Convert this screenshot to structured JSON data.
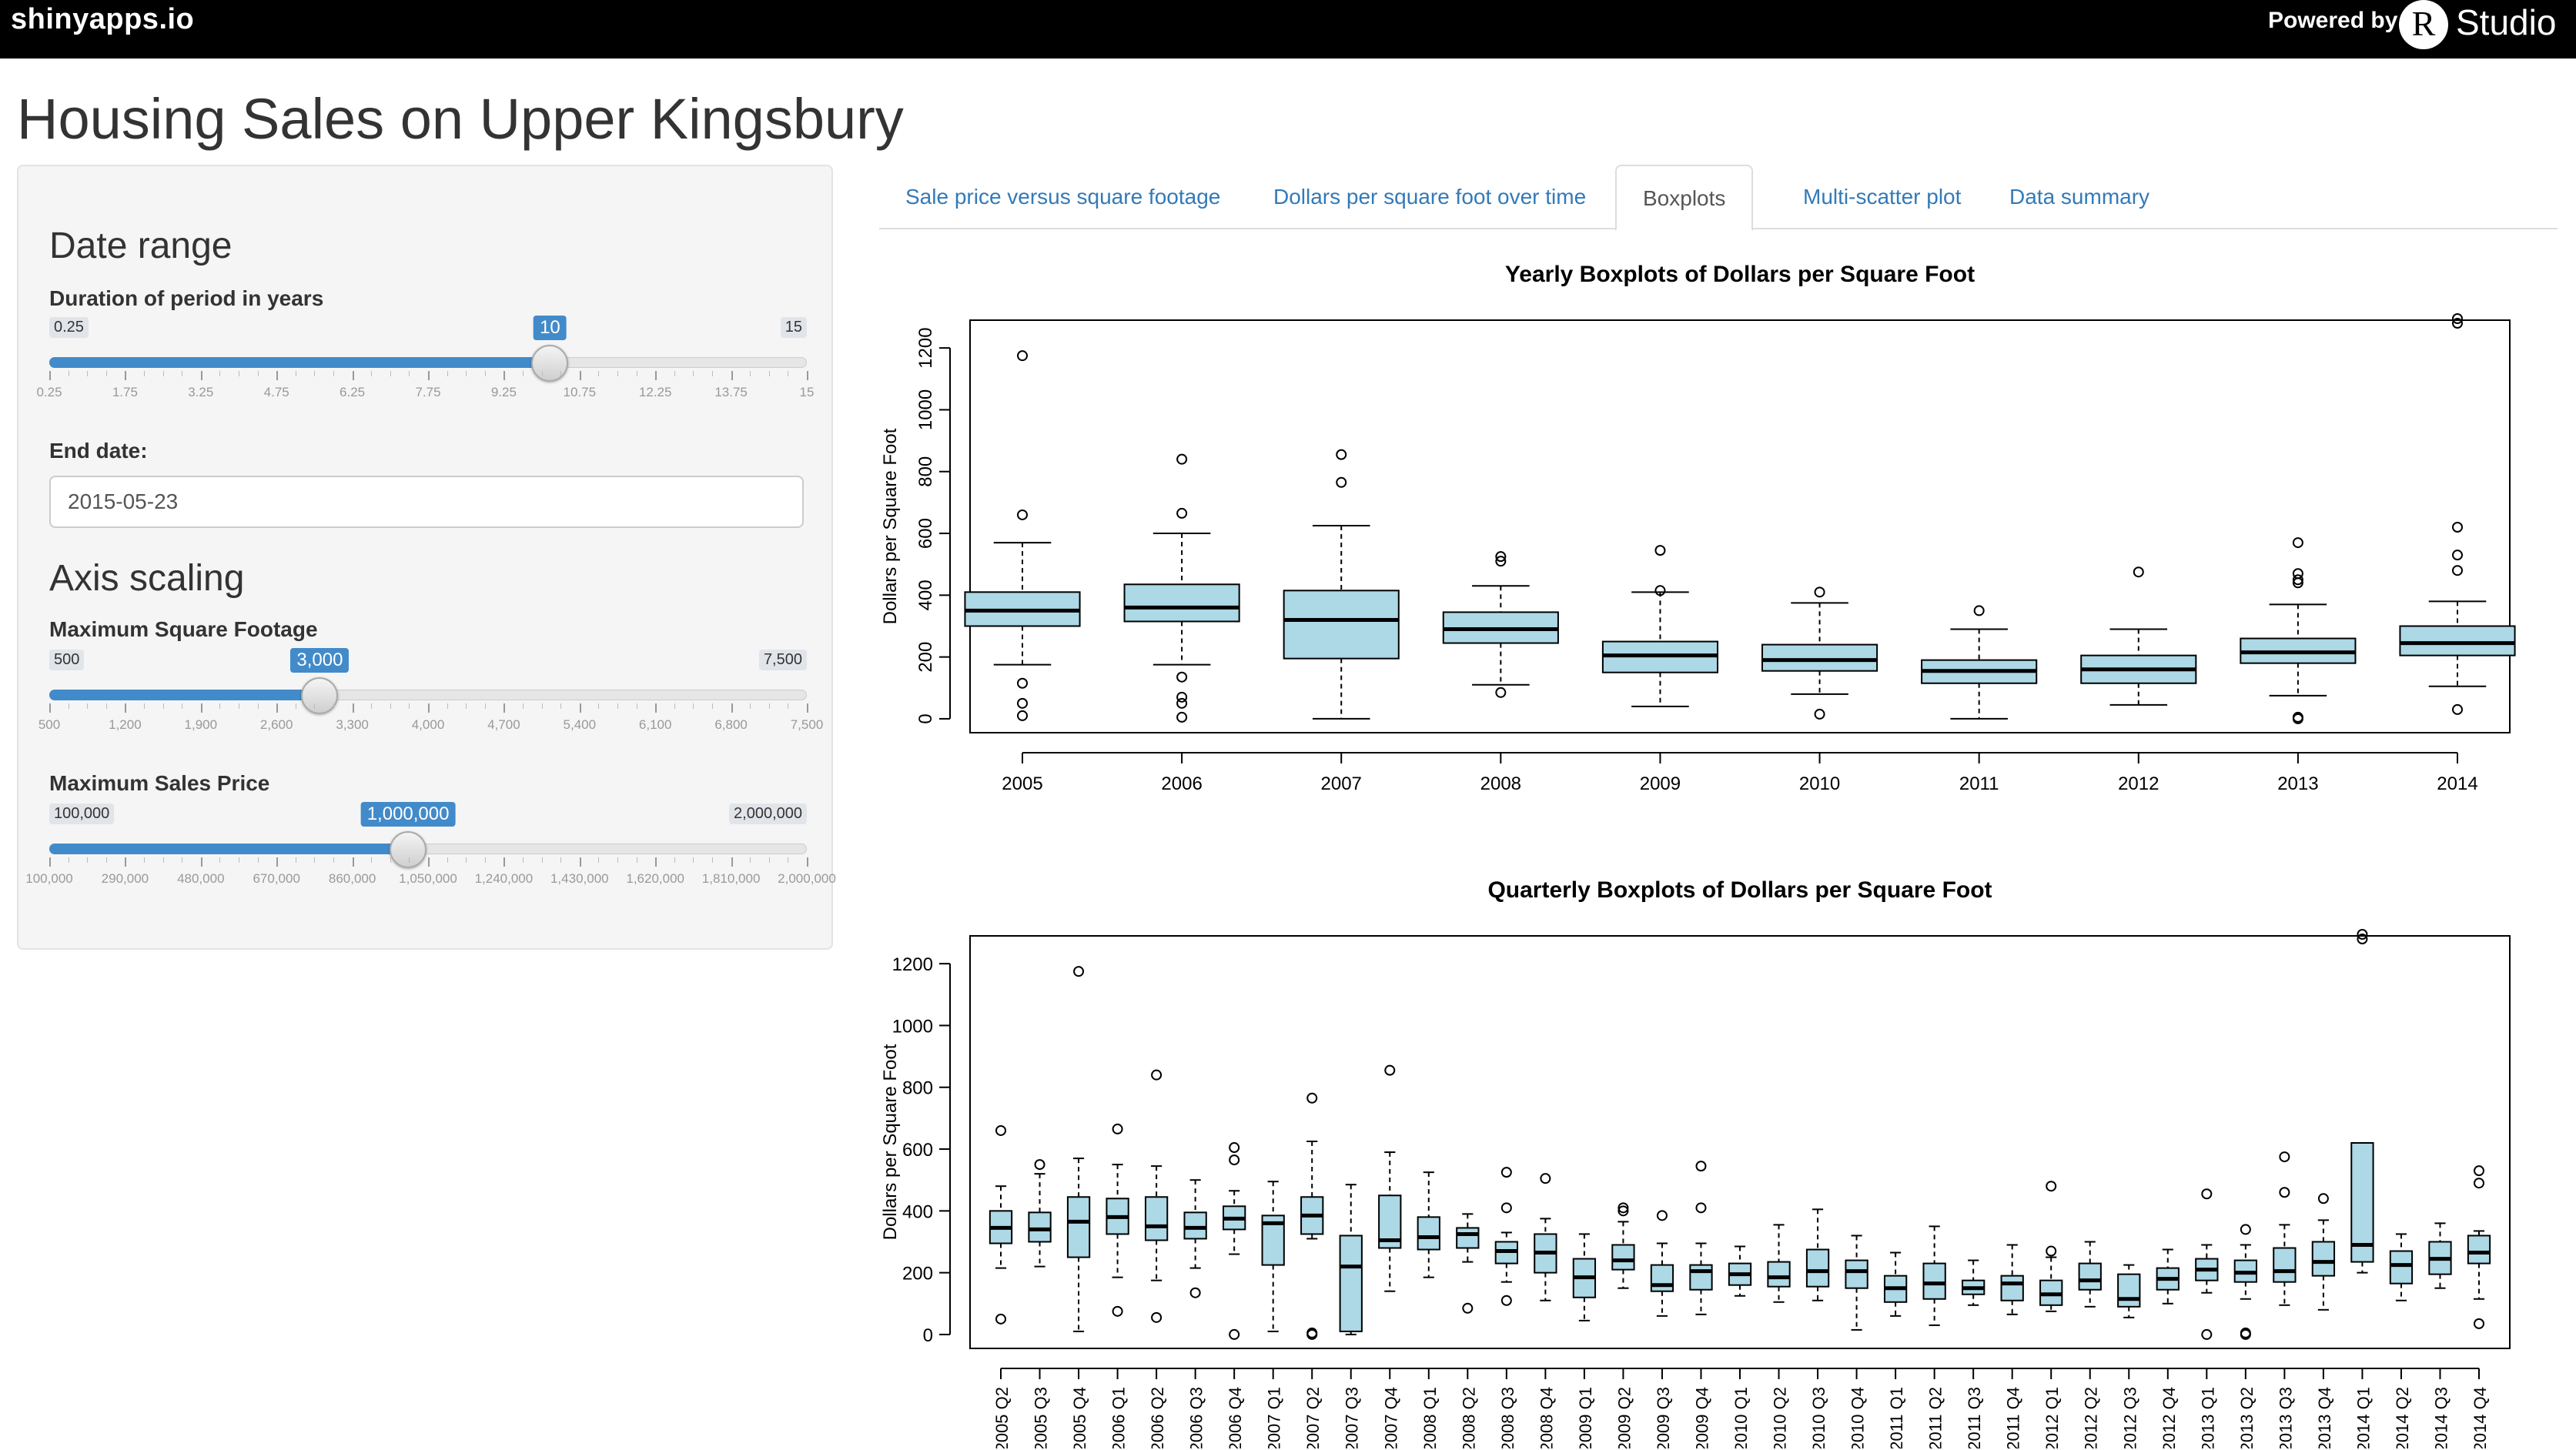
{
  "topbar": {
    "brand": "shinyapps.io",
    "powered_by": "Powered by",
    "rstudio_r": "R",
    "rstudio_word": "Studio"
  },
  "title": "Housing Sales on Upper Kingsbury",
  "sidebar": {
    "date_range_heading": "Date range",
    "duration": {
      "label": "Duration of period in years",
      "min": 0.25,
      "max": 15,
      "value": 10,
      "min_label": "0.25",
      "max_label": "15",
      "value_label": "10",
      "tick_labels": [
        "0.25",
        "1.75",
        "3.25",
        "4.75",
        "6.25",
        "7.75",
        "9.25",
        "10.75",
        "12.25",
        "13.75",
        "15"
      ]
    },
    "end_date": {
      "label": "End date:",
      "value": "2015-05-23"
    },
    "axis_heading": "Axis scaling",
    "max_sqft": {
      "label": "Maximum Square Footage",
      "min": 500,
      "max": 7500,
      "value": 3000,
      "min_label": "500",
      "max_label": "7,500",
      "value_label": "3,000",
      "tick_labels": [
        "500",
        "1,200",
        "1,900",
        "2,600",
        "3,300",
        "4,000",
        "4,700",
        "5,400",
        "6,100",
        "6,800",
        "7,500"
      ]
    },
    "max_price": {
      "label": "Maximum Sales Price",
      "min": 100000,
      "max": 2000000,
      "value": 1000000,
      "min_label": "100,000",
      "max_label": "2,000,000",
      "value_label": "1,000,000",
      "tick_labels": [
        "100,000",
        "290,000",
        "480,000",
        "670,000",
        "860,000",
        "1,050,000",
        "1,240,000",
        "1,430,000",
        "1,620,000",
        "1,810,000",
        "2,000,000"
      ]
    }
  },
  "tabs": [
    {
      "label": "Sale price versus square footage",
      "active": false
    },
    {
      "label": "Dollars per square foot over time",
      "active": false
    },
    {
      "label": "Boxplots",
      "active": true
    },
    {
      "label": "Multi-scatter plot",
      "active": false
    },
    {
      "label": "Data summary",
      "active": false
    }
  ],
  "colors": {
    "box_fill": "#add8e6",
    "accent": "#428bca",
    "link": "#337ab7"
  },
  "chart_data": [
    {
      "type": "boxplot",
      "title": "Yearly Boxplots of Dollars per Square Foot",
      "ylabel": "Dollars per Square Foot",
      "ylim": [
        -45,
        1290
      ],
      "yticks": [
        0,
        200,
        400,
        600,
        800,
        1000,
        1200
      ],
      "categories": [
        "2005",
        "2006",
        "2007",
        "2008",
        "2009",
        "2010",
        "2011",
        "2012",
        "2013",
        "2014"
      ],
      "boxes": [
        {
          "low": 175,
          "q1": 300,
          "median": 350,
          "q3": 410,
          "high": 570,
          "outliers": [
            1175,
            660,
            115,
            50,
            10
          ]
        },
        {
          "low": 175,
          "q1": 315,
          "median": 360,
          "q3": 435,
          "high": 600,
          "outliers": [
            840,
            665,
            135,
            70,
            50,
            5
          ]
        },
        {
          "low": 0,
          "q1": 195,
          "median": 320,
          "q3": 415,
          "high": 625,
          "outliers": [
            855,
            765
          ]
        },
        {
          "low": 110,
          "q1": 245,
          "median": 290,
          "q3": 345,
          "high": 430,
          "outliers": [
            525,
            510,
            85
          ]
        },
        {
          "low": 40,
          "q1": 150,
          "median": 205,
          "q3": 250,
          "high": 410,
          "outliers": [
            545,
            415
          ]
        },
        {
          "low": 80,
          "q1": 155,
          "median": 190,
          "q3": 240,
          "high": 375,
          "outliers": [
            410,
            15
          ]
        },
        {
          "low": 0,
          "q1": 115,
          "median": 155,
          "q3": 190,
          "high": 290,
          "outliers": [
            350
          ]
        },
        {
          "low": 45,
          "q1": 115,
          "median": 160,
          "q3": 205,
          "high": 290,
          "outliers": [
            475
          ]
        },
        {
          "low": 75,
          "q1": 180,
          "median": 215,
          "q3": 260,
          "high": 370,
          "outliers": [
            570,
            470,
            450,
            440,
            5,
            0
          ]
        },
        {
          "low": 105,
          "q1": 205,
          "median": 245,
          "q3": 300,
          "high": 380,
          "outliers": [
            1295,
            1280,
            620,
            530,
            480,
            30
          ]
        }
      ]
    },
    {
      "type": "boxplot",
      "title": "Quarterly Boxplots of Dollars per Square Foot",
      "ylabel": "Dollars per Square Foot",
      "ylim": [
        -45,
        1290
      ],
      "yticks": [
        0,
        200,
        400,
        600,
        800,
        1000,
        1200
      ],
      "categories": [
        "2005 Q2",
        "2005 Q3",
        "2005 Q4",
        "2006 Q1",
        "2006 Q2",
        "2006 Q3",
        "2006 Q4",
        "2007 Q1",
        "2007 Q2",
        "2007 Q3",
        "2007 Q4",
        "2008 Q1",
        "2008 Q2",
        "2008 Q3",
        "2008 Q4",
        "2009 Q1",
        "2009 Q2",
        "2009 Q3",
        "2009 Q4",
        "2010 Q1",
        "2010 Q2",
        "2010 Q3",
        "2010 Q4",
        "2011 Q1",
        "2011 Q2",
        "2011 Q3",
        "2011 Q4",
        "2012 Q1",
        "2012 Q2",
        "2012 Q3",
        "2012 Q4",
        "2013 Q1",
        "2013 Q2",
        "2013 Q3",
        "2013 Q4",
        "2014 Q1",
        "2014 Q2",
        "2014 Q3",
        "2014 Q4"
      ],
      "boxes": [
        {
          "low": 215,
          "q1": 295,
          "median": 345,
          "q3": 400,
          "high": 480,
          "outliers": [
            660,
            50
          ]
        },
        {
          "low": 220,
          "q1": 300,
          "median": 340,
          "q3": 395,
          "high": 520,
          "outliers": [
            550
          ]
        },
        {
          "low": 10,
          "q1": 250,
          "median": 365,
          "q3": 445,
          "high": 570,
          "outliers": [
            1175
          ]
        },
        {
          "low": 185,
          "q1": 325,
          "median": 380,
          "q3": 440,
          "high": 550,
          "outliers": [
            665,
            75
          ]
        },
        {
          "low": 175,
          "q1": 305,
          "median": 350,
          "q3": 445,
          "high": 545,
          "outliers": [
            840,
            55
          ]
        },
        {
          "low": 215,
          "q1": 310,
          "median": 345,
          "q3": 395,
          "high": 500,
          "outliers": [
            135
          ]
        },
        {
          "low": 260,
          "q1": 340,
          "median": 375,
          "q3": 415,
          "high": 465,
          "outliers": [
            605,
            565,
            0
          ]
        },
        {
          "low": 10,
          "q1": 225,
          "median": 360,
          "q3": 385,
          "high": 495,
          "outliers": []
        },
        {
          "low": 310,
          "q1": 325,
          "median": 385,
          "q3": 445,
          "high": 625,
          "outliers": [
            765,
            5,
            0
          ]
        },
        {
          "low": 0,
          "q1": 10,
          "median": 220,
          "q3": 320,
          "high": 485,
          "outliers": []
        },
        {
          "low": 140,
          "q1": 280,
          "median": 305,
          "q3": 450,
          "high": 590,
          "outliers": [
            855
          ]
        },
        {
          "low": 185,
          "q1": 275,
          "median": 315,
          "q3": 380,
          "high": 525,
          "outliers": []
        },
        {
          "low": 235,
          "q1": 280,
          "median": 325,
          "q3": 345,
          "high": 390,
          "outliers": [
            85
          ]
        },
        {
          "low": 170,
          "q1": 230,
          "median": 270,
          "q3": 300,
          "high": 330,
          "outliers": [
            525,
            410,
            110
          ]
        },
        {
          "low": 110,
          "q1": 200,
          "median": 265,
          "q3": 325,
          "high": 375,
          "outliers": [
            505
          ]
        },
        {
          "low": 45,
          "q1": 120,
          "median": 185,
          "q3": 245,
          "high": 325,
          "outliers": []
        },
        {
          "low": 150,
          "q1": 210,
          "median": 240,
          "q3": 290,
          "high": 365,
          "outliers": [
            410,
            400
          ]
        },
        {
          "low": 60,
          "q1": 140,
          "median": 160,
          "q3": 225,
          "high": 295,
          "outliers": [
            385
          ]
        },
        {
          "low": 65,
          "q1": 145,
          "median": 205,
          "q3": 225,
          "high": 295,
          "outliers": [
            545,
            410
          ]
        },
        {
          "low": 125,
          "q1": 160,
          "median": 195,
          "q3": 230,
          "high": 285,
          "outliers": []
        },
        {
          "low": 105,
          "q1": 155,
          "median": 185,
          "q3": 235,
          "high": 355,
          "outliers": []
        },
        {
          "low": 110,
          "q1": 155,
          "median": 205,
          "q3": 275,
          "high": 405,
          "outliers": []
        },
        {
          "low": 15,
          "q1": 150,
          "median": 205,
          "q3": 240,
          "high": 320,
          "outliers": []
        },
        {
          "low": 60,
          "q1": 105,
          "median": 150,
          "q3": 190,
          "high": 265,
          "outliers": []
        },
        {
          "low": 30,
          "q1": 115,
          "median": 165,
          "q3": 230,
          "high": 350,
          "outliers": []
        },
        {
          "low": 95,
          "q1": 130,
          "median": 150,
          "q3": 175,
          "high": 240,
          "outliers": []
        },
        {
          "low": 65,
          "q1": 110,
          "median": 165,
          "q3": 190,
          "high": 290,
          "outliers": []
        },
        {
          "low": 75,
          "q1": 95,
          "median": 130,
          "q3": 175,
          "high": 250,
          "outliers": [
            480,
            270
          ]
        },
        {
          "low": 90,
          "q1": 145,
          "median": 175,
          "q3": 230,
          "high": 300,
          "outliers": []
        },
        {
          "low": 55,
          "q1": 90,
          "median": 115,
          "q3": 195,
          "high": 225,
          "outliers": []
        },
        {
          "low": 100,
          "q1": 145,
          "median": 180,
          "q3": 215,
          "high": 275,
          "outliers": []
        },
        {
          "low": 135,
          "q1": 175,
          "median": 210,
          "q3": 245,
          "high": 290,
          "outliers": [
            455,
            0
          ]
        },
        {
          "low": 115,
          "q1": 170,
          "median": 200,
          "q3": 240,
          "high": 290,
          "outliers": [
            340,
            5,
            0
          ]
        },
        {
          "low": 95,
          "q1": 170,
          "median": 205,
          "q3": 280,
          "high": 355,
          "outliers": [
            575,
            460
          ]
        },
        {
          "low": 80,
          "q1": 190,
          "median": 235,
          "q3": 300,
          "high": 370,
          "outliers": [
            440
          ]
        },
        {
          "low": 200,
          "q1": 235,
          "median": 290,
          "q3": 620,
          "high": 620,
          "outliers": [
            1295,
            1280
          ]
        },
        {
          "low": 110,
          "q1": 165,
          "median": 225,
          "q3": 270,
          "high": 325,
          "outliers": []
        },
        {
          "low": 150,
          "q1": 195,
          "median": 245,
          "q3": 300,
          "high": 360,
          "outliers": []
        },
        {
          "low": 115,
          "q1": 230,
          "median": 265,
          "q3": 320,
          "high": 335,
          "outliers": [
            530,
            490,
            35
          ]
        }
      ]
    }
  ]
}
